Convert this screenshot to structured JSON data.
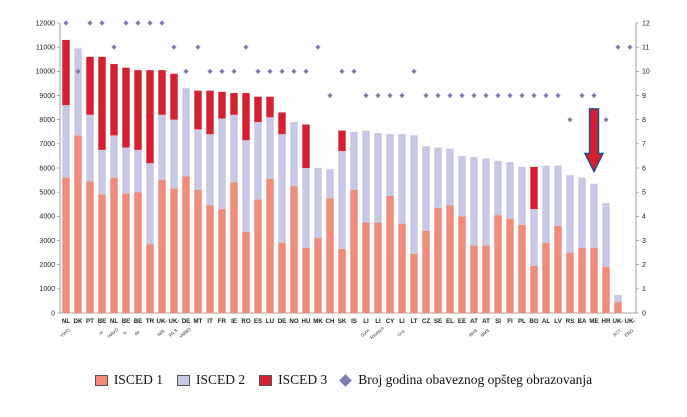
{
  "chart_data": {
    "type": "bar",
    "stacked": true,
    "categories": [
      "NL",
      "DK",
      "PT",
      "BE",
      "NL",
      "BE",
      "BE",
      "TR",
      "UK-",
      "UK-",
      "DE",
      "MT",
      "IT",
      "FR",
      "IE",
      "RO",
      "ES",
      "LU",
      "DE",
      "NO",
      "HU",
      "MK",
      "CH",
      "SK",
      "IS",
      "LI",
      "LI",
      "CY",
      "LI",
      "LT",
      "CZ",
      "SE",
      "EL",
      "EE",
      "AT",
      "AT",
      "SI",
      "FI",
      "PL",
      "BG",
      "AL",
      "LV",
      "RS",
      "BA",
      "ME",
      "HR",
      "UK-",
      "UK-"
    ],
    "sublabels": [
      "VWO",
      "",
      "",
      "nl",
      "HAVO",
      "fr",
      "de",
      "",
      "NIR",
      "WLS",
      "VMBO",
      "",
      "",
      "",
      "",
      "",
      "",
      "",
      "",
      "",
      "",
      "",
      "",
      "",
      "",
      "Gym",
      "Realsch",
      "",
      "Gra",
      "",
      "",
      "",
      "",
      "",
      "AHS",
      "NMS",
      "",
      "",
      "",
      "",
      "",
      "",
      "",
      "",
      "",
      "",
      "SCT",
      "ENG"
    ],
    "yaxis_left": {
      "min": 0,
      "max": 12000,
      "step": 1000
    },
    "yaxis_right": {
      "min": 0,
      "max": 12,
      "step": 1
    },
    "series": [
      {
        "name": "ISCED 1",
        "color": "#f08a7a",
        "values": [
          5600,
          7350,
          5450,
          4900,
          5600,
          4950,
          5000,
          2850,
          5500,
          5150,
          5650,
          5100,
          4450,
          4300,
          5400,
          3350,
          4700,
          5550,
          2900,
          5250,
          2700,
          3100,
          4750,
          2650,
          5100,
          3750,
          3750,
          4850,
          3700,
          2450,
          3400,
          4350,
          4450,
          4000,
          2800,
          2800,
          4050,
          3900,
          3650,
          1950,
          2900,
          3600,
          2500,
          2700,
          2700,
          1900,
          450,
          0
        ]
      },
      {
        "name": "ISCED 2",
        "color": "#c8c8e6",
        "values": [
          3000,
          3600,
          2750,
          1850,
          1750,
          1900,
          1750,
          3350,
          2700,
          2850,
          3650,
          2500,
          2950,
          3750,
          2800,
          3800,
          3200,
          2550,
          4500,
          2650,
          3300,
          2900,
          1200,
          4050,
          2400,
          3800,
          3700,
          2550,
          3700,
          4900,
          3500,
          2500,
          2350,
          2500,
          3650,
          3600,
          2250,
          2350,
          2400,
          2350,
          3200,
          2500,
          3200,
          2900,
          2650,
          2650,
          300,
          0
        ]
      },
      {
        "name": "ISCED 3",
        "color": "#d42030",
        "values": [
          2700,
          0,
          2400,
          3850,
          2950,
          3300,
          3300,
          3850,
          1850,
          1900,
          0,
          1600,
          1800,
          1100,
          900,
          1950,
          1050,
          850,
          900,
          0,
          1800,
          0,
          0,
          850,
          0,
          0,
          0,
          0,
          0,
          0,
          0,
          0,
          0,
          0,
          0,
          0,
          0,
          0,
          0,
          1750,
          0,
          0,
          0,
          0,
          0,
          0,
          0,
          0
        ]
      }
    ],
    "markers": {
      "name": "Broj godina obaveznog opšteg obrazovanja",
      "color": "#7d7eb1",
      "values": [
        12,
        10,
        12,
        12,
        11,
        12,
        12,
        12,
        12,
        11,
        10,
        11,
        10,
        10,
        10,
        11,
        10,
        10,
        10,
        10,
        10,
        11,
        9,
        10,
        10,
        9,
        9,
        9,
        9,
        10,
        9,
        9,
        9,
        9,
        9,
        9,
        9,
        9,
        9,
        9,
        9,
        9,
        8,
        9,
        9,
        8,
        11,
        11
      ]
    },
    "annotations": [
      {
        "type": "arrow",
        "category_index": 44,
        "color": "#d42030"
      }
    ]
  },
  "legend": {
    "items": [
      {
        "label": "ISCED 1",
        "color": "#f08a7a"
      },
      {
        "label": "ISCED 2",
        "color": "#c8c8e6"
      },
      {
        "label": "ISCED 3",
        "color": "#d42030"
      }
    ],
    "marker_label": "Broj godina obaveznog opšteg obrazovanja"
  }
}
